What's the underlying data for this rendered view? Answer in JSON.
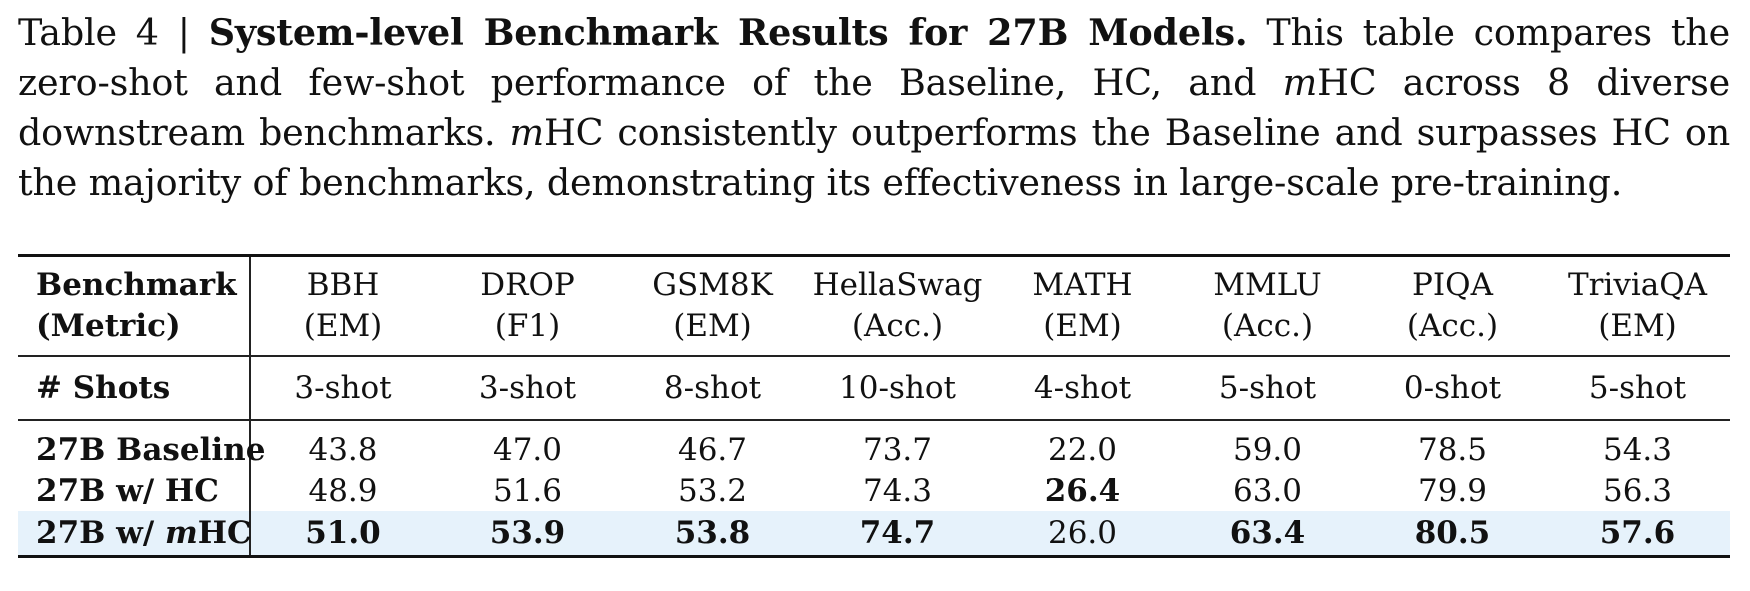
{
  "caption": {
    "label": "Table 4 |",
    "title": "System-level Benchmark Results for 27B Models.",
    "text_a": "This table compares the zero-shot and few-shot performance of the Baseline, HC, and",
    "m1": "m",
    "text_b": "HC across 8 diverse downstream benchmarks.",
    "m2": "m",
    "text_c": "HC consistently outperforms the Baseline and surpasses HC on the majority of benchmarks, demonstrating its effectiveness in large-scale pre-training."
  },
  "table": {
    "header_label_1": "Benchmark",
    "header_label_2": "(Metric)",
    "columns": [
      {
        "name": "BBH",
        "metric": "(EM)",
        "shots": "3-shot"
      },
      {
        "name": "DROP",
        "metric": "(F1)",
        "shots": "3-shot"
      },
      {
        "name": "GSM8K",
        "metric": "(EM)",
        "shots": "8-shot"
      },
      {
        "name": "HellaSwag",
        "metric": "(Acc.)",
        "shots": "10-shot"
      },
      {
        "name": "MATH",
        "metric": "(EM)",
        "shots": "4-shot"
      },
      {
        "name": "MMLU",
        "metric": "(Acc.)",
        "shots": "5-shot"
      },
      {
        "name": "PIQA",
        "metric": "(Acc.)",
        "shots": "0-shot"
      },
      {
        "name": "TriviaQA",
        "metric": "(EM)",
        "shots": "5-shot"
      }
    ],
    "shots_label": "# Shots",
    "rows": [
      {
        "label": "27B Baseline",
        "values": [
          "43.8",
          "47.0",
          "46.7",
          "73.7",
          "22.0",
          "59.0",
          "78.5",
          "54.3"
        ]
      },
      {
        "label": "27B w/ HC",
        "values": [
          "48.9",
          "51.6",
          "53.2",
          "74.3",
          "26.4",
          "63.0",
          "79.9",
          "56.3"
        ]
      },
      {
        "label_a": "27B w/ ",
        "label_m": "m",
        "label_b": "HC",
        "values": [
          "51.0",
          "53.9",
          "53.8",
          "74.7",
          "26.0",
          "63.4",
          "80.5",
          "57.6"
        ]
      }
    ],
    "highlight_color": "#e6f2fb"
  }
}
